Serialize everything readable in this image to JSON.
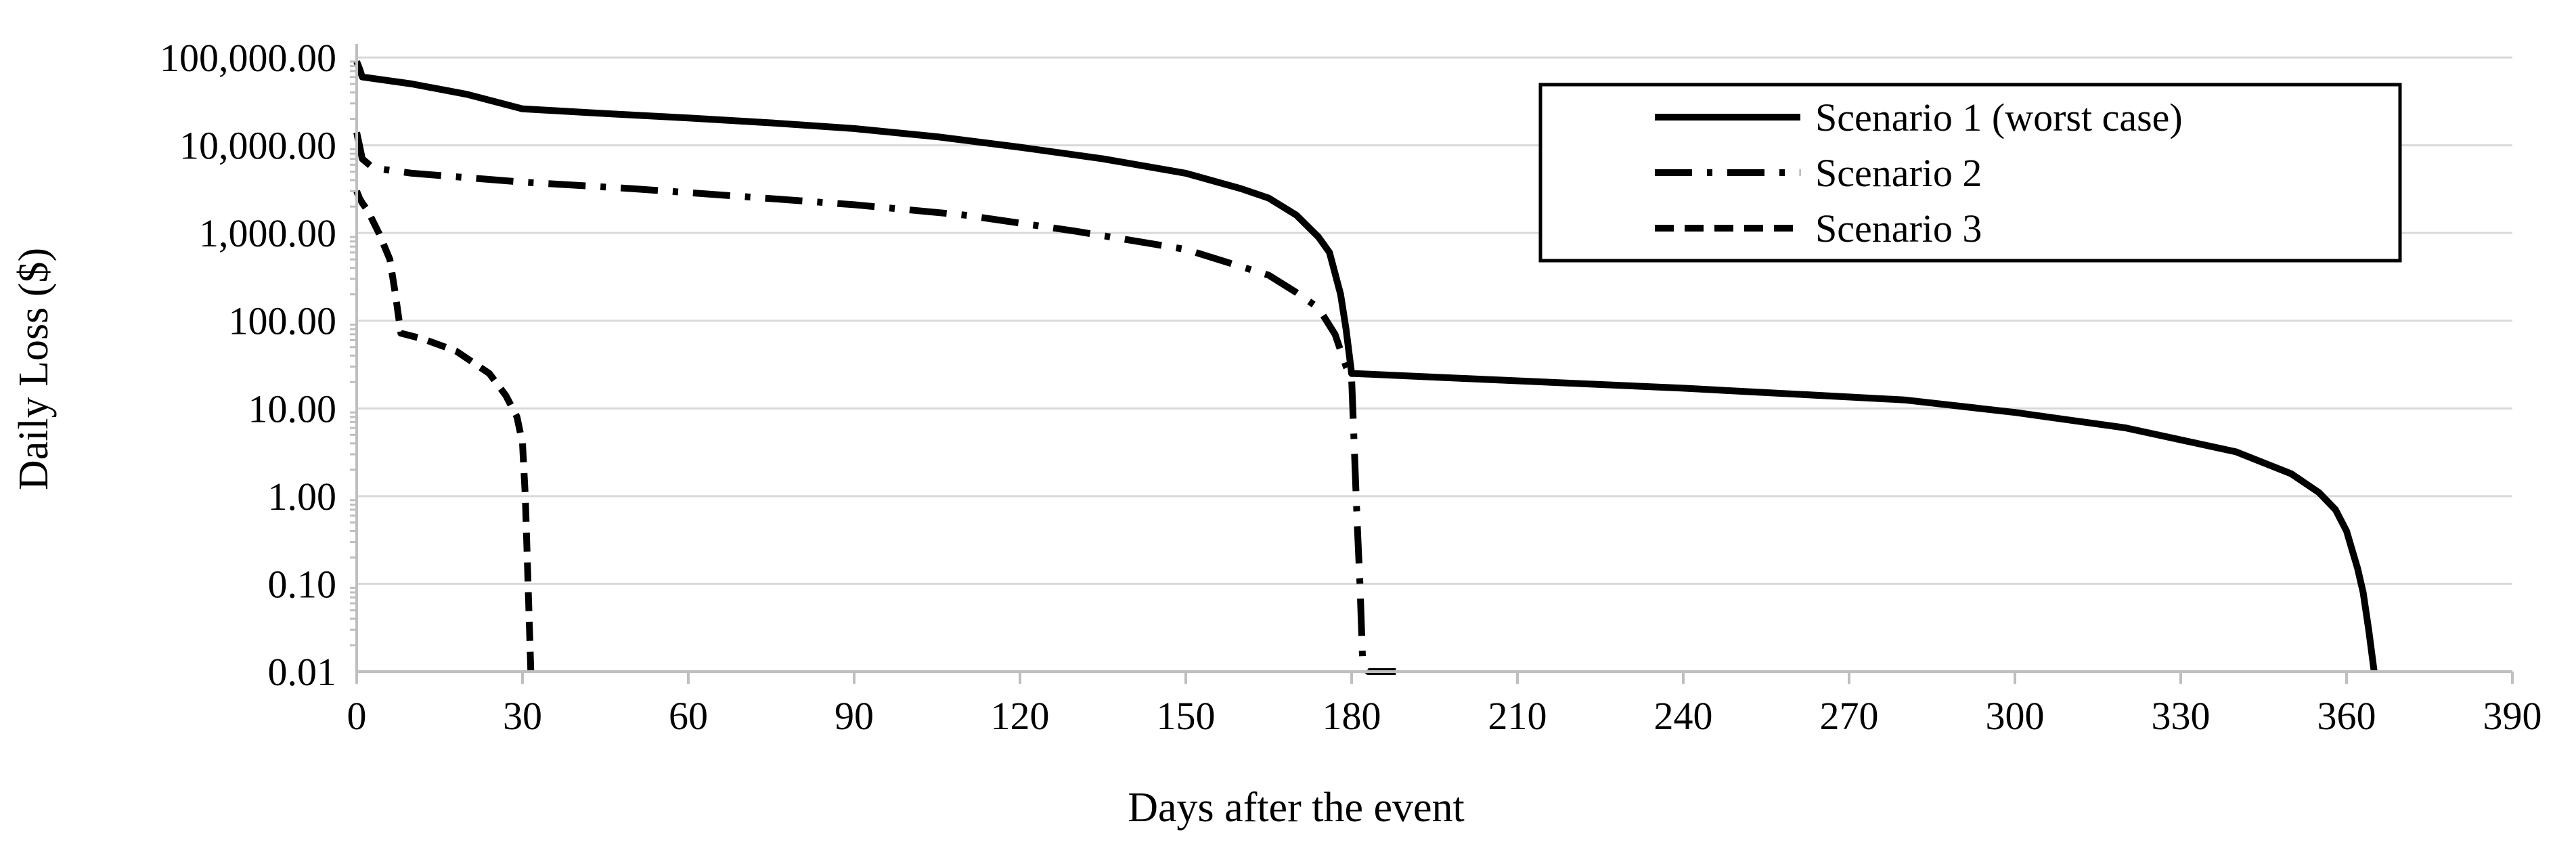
{
  "chart_data": {
    "type": "line",
    "xlabel": "Days after the event",
    "ylabel": "Daily Loss ($)",
    "xlim": [
      0,
      390
    ],
    "ylim": [
      0.01,
      100000
    ],
    "yscale": "log",
    "x_ticks": [
      0,
      30,
      60,
      90,
      120,
      150,
      180,
      210,
      240,
      270,
      300,
      330,
      360,
      390
    ],
    "x_tick_labels": [
      "0",
      "30",
      "60",
      "90",
      "120",
      "150",
      "180",
      "210",
      "240",
      "270",
      "300",
      "330",
      "360",
      "390"
    ],
    "y_ticks": [
      0.01,
      0.1,
      1,
      10,
      100,
      1000,
      10000,
      100000
    ],
    "y_tick_labels": [
      "0.01",
      "0.10",
      "1.00",
      "10.00",
      "100.00",
      "1,000.00",
      "10,000.00",
      "100,000.00"
    ],
    "grid": "horizontal",
    "legend_position": "top-right",
    "series": [
      {
        "name": "Scenario 1 (worst case)",
        "dash": "solid",
        "x": [
          0,
          0.5,
          1,
          10,
          20,
          30,
          45,
          60,
          75,
          90,
          105,
          120,
          135,
          150,
          160,
          165,
          170,
          174,
          176,
          178,
          179,
          180,
          180.5,
          200,
          240,
          280,
          300,
          320,
          340,
          350,
          355,
          358,
          360,
          362,
          363,
          364,
          365
        ],
        "y": [
          90000,
          75000,
          60000,
          50000,
          38000,
          26000,
          23000,
          20500,
          18000,
          15500,
          12500,
          9500,
          7000,
          4800,
          3200,
          2500,
          1600,
          900,
          600,
          200,
          80,
          25,
          25,
          22,
          17,
          12.5,
          9,
          6,
          3.2,
          1.8,
          1.1,
          0.7,
          0.4,
          0.15,
          0.08,
          0.03,
          0.01
        ]
      },
      {
        "name": "Scenario 2",
        "dash": "dash-dot",
        "x": [
          0,
          0.5,
          1,
          3,
          10,
          30,
          50,
          70,
          90,
          110,
          130,
          150,
          165,
          170,
          174,
          177,
          179,
          180,
          181,
          181.5,
          182,
          183,
          185,
          188
        ],
        "y": [
          14000,
          10000,
          7000,
          5500,
          4800,
          3800,
          3200,
          2600,
          2100,
          1600,
          1050,
          650,
          330,
          210,
          140,
          70,
          30,
          22,
          0.5,
          0.1,
          0.013,
          0.01,
          0.01,
          0.01
        ]
      },
      {
        "name": "Scenario 3",
        "dash": "dashed",
        "x": [
          0,
          0.5,
          1,
          2,
          4,
          6,
          7,
          8,
          12,
          18,
          24,
          27,
          29,
          30,
          30.5,
          31,
          31.5
        ],
        "y": [
          3000,
          2500,
          2200,
          1800,
          1000,
          500,
          200,
          72,
          62,
          45,
          25,
          14,
          8,
          4,
          1,
          0.1,
          0.01
        ]
      }
    ]
  }
}
